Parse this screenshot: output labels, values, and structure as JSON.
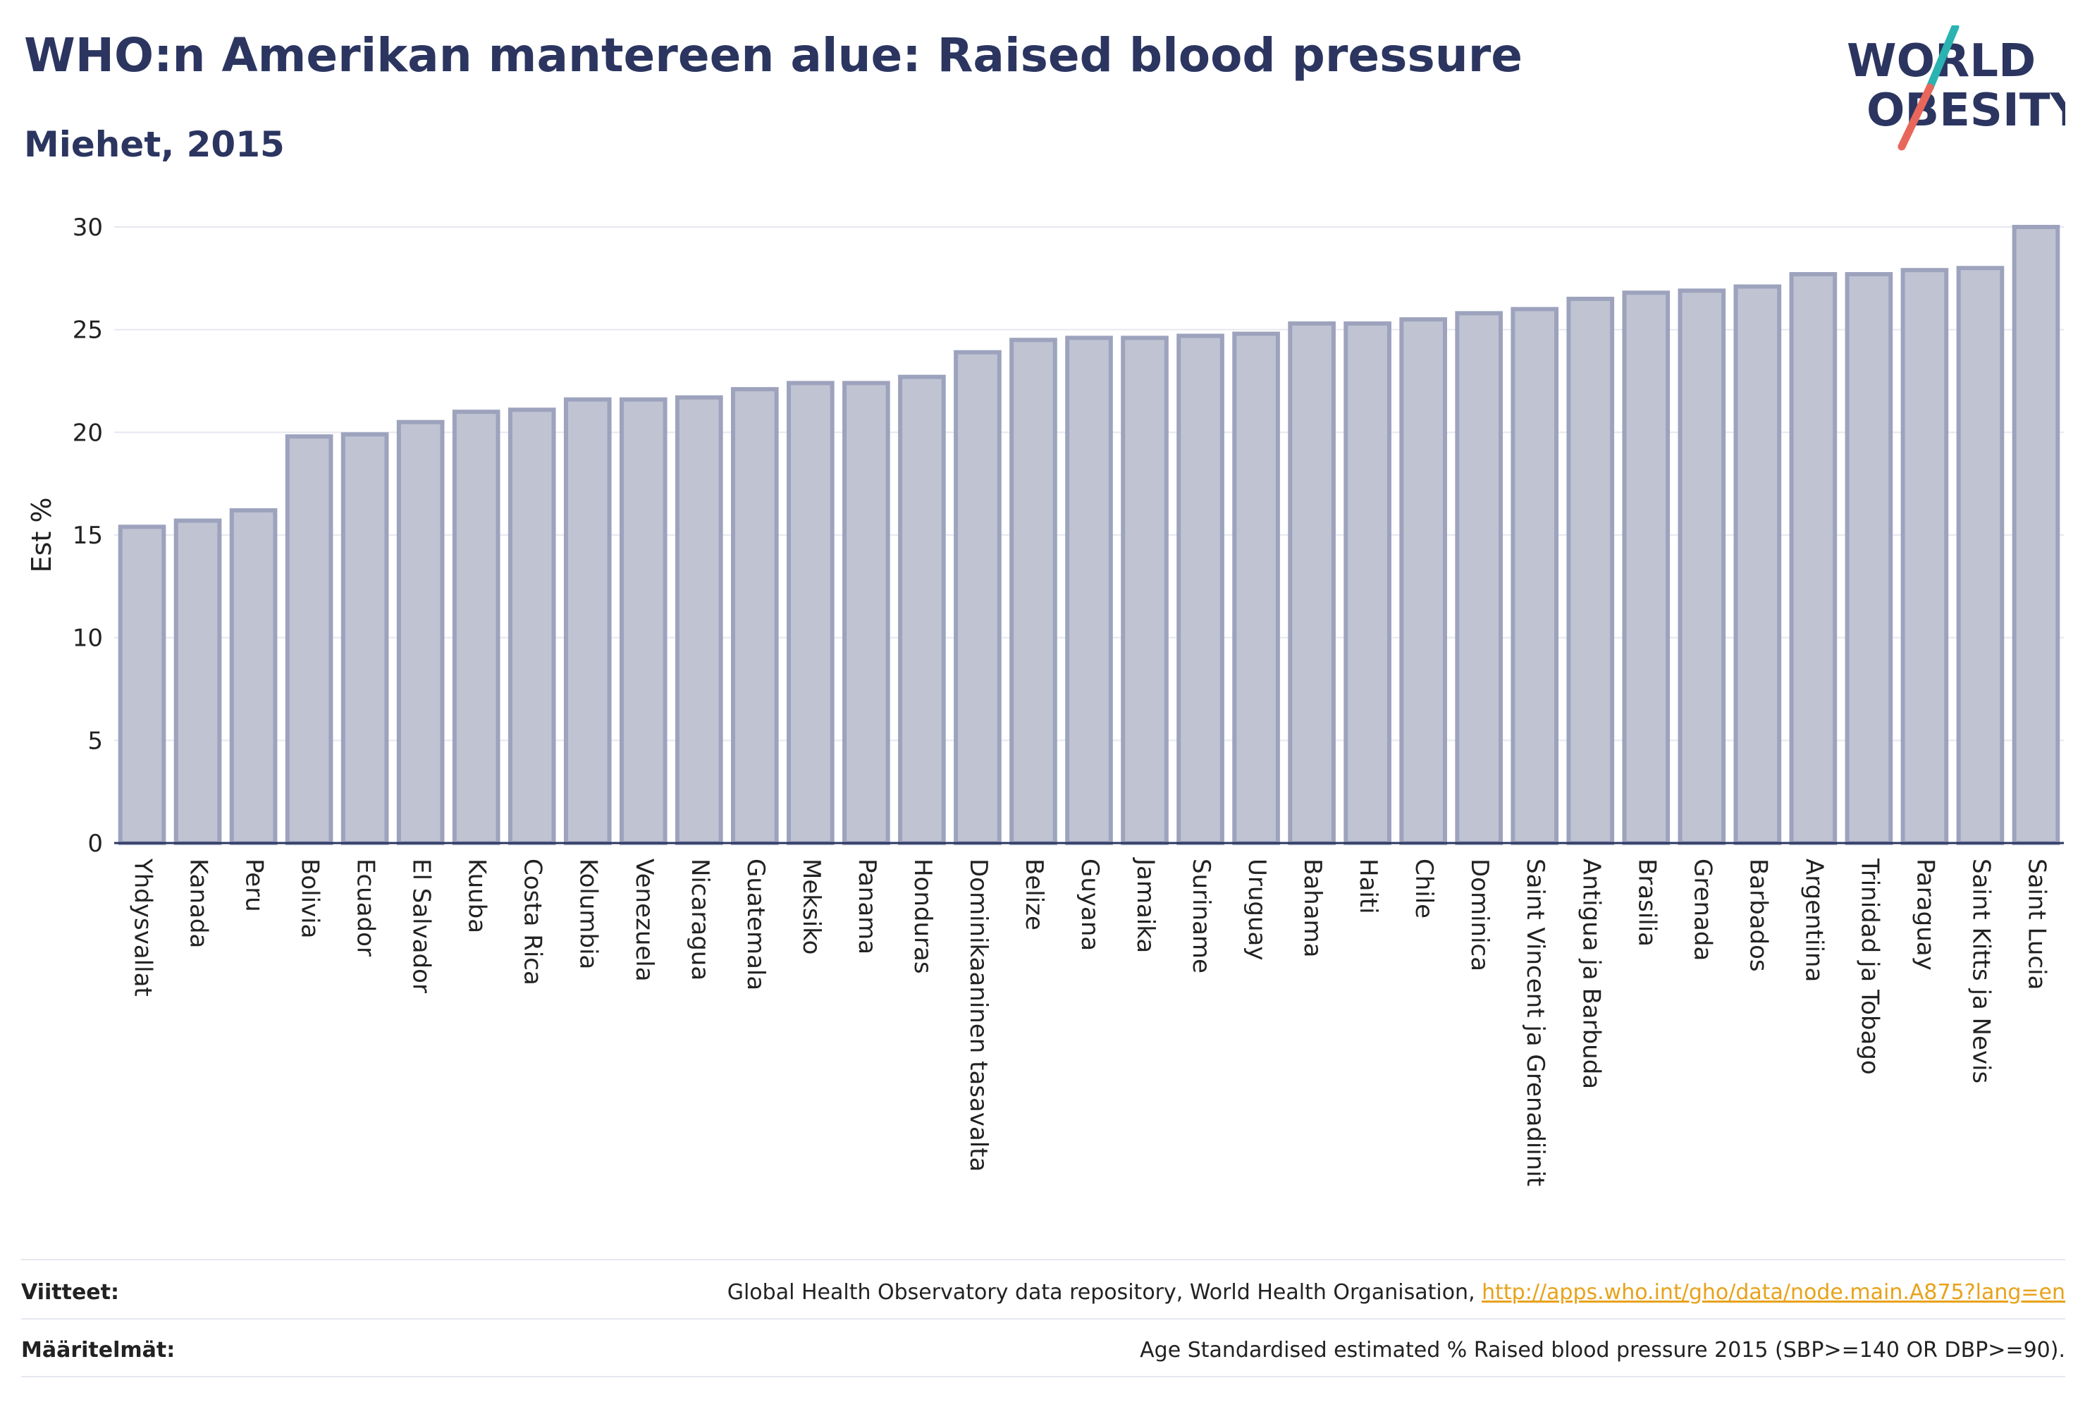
{
  "header": {
    "title": "WHO:n Amerikan mantereen alue: Raised blood pressure",
    "subtitle": "Miehet, 2015"
  },
  "logo": {
    "line1": "WORLD",
    "line2": "OBESITY",
    "accent_teal": "#2bb3b1",
    "accent_coral": "#e8675a",
    "text_color": "#2b3560"
  },
  "chart_data": {
    "type": "bar",
    "ylabel": "Est %",
    "ylim": [
      0,
      30
    ],
    "yticks": [
      0,
      5,
      10,
      15,
      20,
      25,
      30
    ],
    "grid": true,
    "bar_fill": "#c0c3d2",
    "bar_stroke": "#9da3bd",
    "categories": [
      "Yhdysvallat",
      "Kanada",
      "Peru",
      "Bolivia",
      "Ecuador",
      "El Salvador",
      "Kuuba",
      "Costa Rica",
      "Kolumbia",
      "Venezuela",
      "Nicaragua",
      "Guatemala",
      "Meksiko",
      "Panama",
      "Honduras",
      "Dominikaaninen tasavalta",
      "Belize",
      "Guyana",
      "Jamaika",
      "Suriname",
      "Uruguay",
      "Bahama",
      "Haiti",
      "Chile",
      "Dominica",
      "Saint Vincent ja Grenadiinit",
      "Antigua ja Barbuda",
      "Brasilia",
      "Grenada",
      "Barbados",
      "Argentiina",
      "Trinidad ja Tobago",
      "Paraguay",
      "Saint Kitts ja Nevis",
      "Saint Lucia"
    ],
    "values": [
      15.4,
      15.7,
      16.2,
      19.8,
      19.9,
      20.5,
      21.0,
      21.1,
      21.6,
      21.6,
      21.7,
      22.1,
      22.4,
      22.4,
      22.7,
      23.9,
      24.5,
      24.6,
      24.6,
      24.7,
      24.8,
      25.3,
      25.3,
      25.5,
      25.8,
      26.0,
      26.5,
      26.8,
      26.9,
      27.1,
      27.7,
      27.7,
      27.9,
      28.0,
      30.0
    ]
  },
  "footer": {
    "references_label": "Viitteet:",
    "references_text": "Global Health Observatory data repository, World Health Organisation, ",
    "references_link": "http://apps.who.int/gho/data/node.main.A875?lang=en",
    "definitions_label": "Määritelmät:",
    "definitions_text": "Age Standardised estimated % Raised blood pressure 2015 (SBP>=140 OR DBP>=90)."
  }
}
